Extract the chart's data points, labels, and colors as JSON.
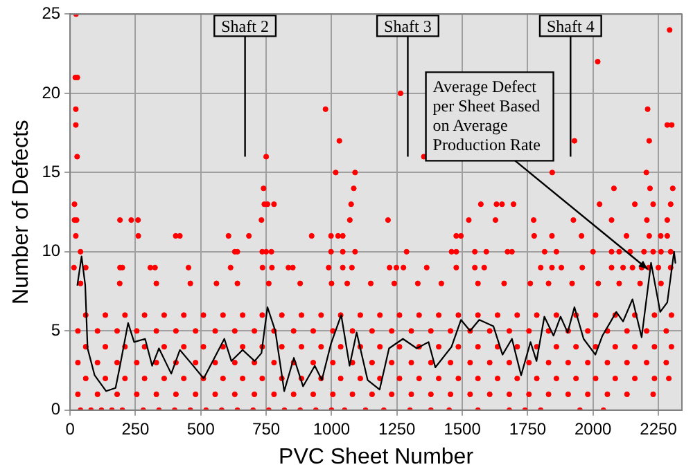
{
  "chart_data": {
    "type": "scatter",
    "xlabel": "PVC Sheet Number",
    "ylabel": "Number of Defects",
    "xlim": [
      0,
      2340
    ],
    "ylim": [
      0,
      25
    ],
    "xticks": [
      0,
      250,
      500,
      750,
      1000,
      1250,
      1500,
      1750,
      2000,
      2250
    ],
    "yticks": [
      0,
      5,
      10,
      15,
      20,
      25
    ],
    "grid": true,
    "legend": false,
    "marker": "circle",
    "annotations": [
      "Shaft 2",
      "Shaft 3",
      "Shaft 4",
      {
        "text": "Average Defect per Sheet Based on Average Production Rate",
        "x": 2209,
        "y": 8.9
      }
    ],
    "series": [
      {
        "color": "#ff0000",
        "x": [
          23,
          20,
          28,
          22,
          22,
          27,
          17,
          17,
          25,
          22,
          191,
          234,
          260,
          261,
          404,
          420,
          606,
          684,
          924,
          998,
          1025,
          1043,
          740,
          1085,
          743,
          755,
          780,
          1075,
          732,
          1070,
          1016,
          1090,
          750,
          1030,
          977,
          630,
          640,
          735,
          750,
          770,
          998,
          1043,
          1090,
          40,
          15,
          60,
          191,
          200,
          307,
          325,
          453,
          614,
          736,
          772,
          835,
          852,
          989,
          1043,
          1078,
          2293,
          2018,
          1264,
          2209,
          2284,
          2301,
          1929,
          2215,
          1353,
          1844,
          2204,
          2080,
          2218,
          2305,
          1571,
          1631,
          1652,
          1696,
          2025,
          2160,
          2230,
          2297,
          1216,
          1525,
          1627,
          1773,
          1925,
          2071,
          2206,
          2284,
          1477,
          1495,
          1775,
          1843,
          1956,
          2128,
          2215,
          2259,
          2284,
          1287,
          1459,
          1477,
          1548,
          1592,
          1673,
          1690,
          1815,
          1860,
          2000,
          2071,
          2100,
          2142,
          2195,
          2230,
          2260,
          2297,
          1222,
          1248,
          1275,
          1364,
          1477,
          1548,
          1584,
          1800,
          1843,
          1879,
          1959,
          2071,
          2115,
          2151,
          2186,
          2213,
          2250,
          2297,
          40,
          80,
          120,
          160,
          200,
          280,
          340,
          400,
          460,
          520,
          580,
          640,
          700,
          760,
          820,
          880,
          940,
          1000,
          1050,
          1130,
          1200,
          1300,
          1380,
          1450,
          1560,
          1680,
          1740,
          1800,
          1950,
          2040,
          30,
          105,
          180,
          255,
          330,
          405,
          480,
          555,
          630,
          705,
          780,
          855,
          930,
          1005,
          1080,
          1155,
          1230,
          1305,
          1380,
          1455,
          1530,
          1605,
          1680,
          1755,
          1830,
          1905,
          1980,
          2055,
          2130,
          2230,
          60,
          135,
          210,
          285,
          360,
          435,
          510,
          585,
          660,
          735,
          810,
          885,
          960,
          1035,
          1110,
          1185,
          1260,
          1335,
          1410,
          1485,
          1560,
          1635,
          1710,
          1785,
          1860,
          1935,
          2010,
          2085,
          2160,
          2235,
          2290,
          30,
          105,
          180,
          255,
          330,
          405,
          480,
          555,
          630,
          705,
          780,
          855,
          930,
          1005,
          1080,
          1155,
          1230,
          1305,
          1380,
          1455,
          1530,
          1605,
          1680,
          1755,
          1830,
          1905,
          1980,
          2055,
          2130,
          2205,
          2280,
          60,
          135,
          210,
          285,
          360,
          435,
          510,
          585,
          660,
          735,
          810,
          885,
          960,
          1035,
          1110,
          1185,
          1260,
          1335,
          1410,
          1485,
          1560,
          1635,
          1710,
          1785,
          1860,
          1935,
          2010,
          2085,
          2160,
          2235,
          2300,
          30,
          105,
          180,
          255,
          330,
          405,
          480,
          555,
          630,
          705,
          780,
          855,
          930,
          1005,
          1080,
          1155,
          1230,
          1305,
          1380,
          1455,
          1530,
          1605,
          1680,
          1755,
          1830,
          1905,
          1980,
          2055,
          2130,
          2205,
          2280,
          60,
          135,
          210,
          285,
          360,
          435,
          510,
          585,
          660,
          735,
          810,
          885,
          960,
          1035,
          1110,
          1185,
          1260,
          1335,
          1410,
          1485,
          1560,
          1635,
          1710,
          1785,
          1860,
          1935,
          2010,
          2085,
          2160,
          2235,
          2300,
          40,
          190,
          330,
          460,
          560,
          640,
          760,
          880,
          1000,
          1060,
          1150,
          1240,
          1330,
          1420,
          1560,
          1660,
          1760,
          1830,
          1920,
          2020,
          2100,
          2180,
          2260
        ],
        "values": [
          25,
          21,
          21,
          19,
          18,
          16,
          13,
          12,
          12,
          11,
          12,
          12,
          12,
          11,
          11,
          11,
          11,
          11,
          11,
          11,
          11,
          11,
          14,
          14,
          13,
          13,
          13,
          13,
          12,
          12,
          15,
          15,
          16,
          17,
          19,
          10,
          10,
          10,
          10,
          10,
          10,
          10,
          10,
          10,
          9,
          9,
          9,
          9,
          9,
          9,
          9,
          9,
          9,
          9,
          9,
          9,
          9,
          9,
          9,
          24,
          22,
          20,
          19,
          18,
          18,
          17,
          17,
          16,
          15,
          15,
          14,
          14,
          14,
          13,
          13,
          13,
          13,
          13,
          13,
          13,
          13,
          12,
          12,
          12,
          12,
          12,
          12,
          12,
          12,
          11,
          11,
          11,
          11,
          11,
          11,
          11,
          11,
          11,
          10,
          10,
          10,
          10,
          10,
          10,
          10,
          10,
          10,
          10,
          10,
          10,
          10,
          10,
          10,
          10,
          10,
          9,
          9,
          9,
          9,
          9,
          9,
          9,
          9,
          9,
          9,
          9,
          9,
          9,
          9,
          9,
          9,
          9,
          9,
          0,
          0,
          0,
          0,
          0,
          0,
          0,
          0,
          0,
          0,
          0,
          0,
          0,
          0,
          0,
          0,
          0,
          0,
          0,
          0,
          0,
          0,
          0,
          0,
          0,
          0,
          0,
          0,
          0,
          0,
          1,
          1,
          1,
          1,
          1,
          1,
          1,
          1,
          1,
          1,
          1,
          1,
          1,
          1,
          1,
          1,
          1,
          1,
          1,
          1,
          1,
          1,
          1,
          1,
          1,
          1,
          1,
          1,
          1,
          1,
          2,
          2,
          2,
          2,
          2,
          2,
          2,
          2,
          2,
          2,
          2,
          2,
          2,
          2,
          2,
          2,
          2,
          2,
          2,
          2,
          2,
          2,
          2,
          2,
          2,
          2,
          2,
          2,
          2,
          2,
          2,
          3,
          3,
          3,
          3,
          3,
          3,
          3,
          3,
          3,
          3,
          3,
          3,
          3,
          3,
          3,
          3,
          3,
          3,
          3,
          3,
          3,
          3,
          3,
          3,
          3,
          3,
          3,
          3,
          3,
          3,
          3,
          4,
          4,
          4,
          4,
          4,
          4,
          4,
          4,
          4,
          4,
          4,
          4,
          4,
          4,
          4,
          4,
          4,
          4,
          4,
          4,
          4,
          4,
          4,
          4,
          4,
          4,
          4,
          4,
          4,
          4,
          4,
          5,
          5,
          5,
          5,
          5,
          5,
          5,
          5,
          5,
          5,
          5,
          5,
          5,
          5,
          5,
          5,
          5,
          5,
          5,
          5,
          5,
          5,
          5,
          5,
          5,
          5,
          5,
          5,
          5,
          5,
          5,
          6,
          6,
          6,
          6,
          6,
          6,
          6,
          6,
          6,
          6,
          6,
          6,
          6,
          6,
          6,
          6,
          6,
          6,
          6,
          6,
          6,
          6,
          6,
          6,
          6,
          6,
          6,
          6,
          6,
          6,
          6,
          8,
          8,
          8,
          8,
          8,
          8,
          8,
          8,
          8,
          8,
          8,
          8,
          8,
          8,
          8,
          8,
          8,
          8,
          8,
          8,
          8,
          8,
          8
        ]
      },
      {
        "type": "line",
        "color": "#000000",
        "marker": "none",
        "x": [
          28,
          44,
          58,
          67,
          94,
          138,
          174,
          191,
          222,
          245,
          287,
          314,
          340,
          387,
          420,
          466,
          511,
          546,
          590,
          617,
          660,
          706,
          732,
          755,
          785,
          819,
          856,
          891,
          936,
          963,
          998,
          1037,
          1069,
          1096,
          1138,
          1184,
          1220,
          1273,
          1326,
          1371,
          1397,
          1459,
          1495,
          1530,
          1565,
          1619,
          1654,
          1690,
          1725,
          1761,
          1784,
          1814,
          1849,
          1876,
          1903,
          1929,
          1964,
          2009,
          2036,
          2089,
          2115,
          2151,
          2186,
          2222,
          2257,
          2284,
          2310,
          2315
        ],
        "values": [
          7.9,
          9.7,
          7.9,
          3.9,
          2.2,
          1.2,
          1.4,
          2.8,
          5.5,
          4.3,
          4.5,
          2.8,
          3.9,
          2.3,
          3.8,
          2.9,
          2.0,
          3.1,
          4.5,
          3.1,
          3.8,
          3.1,
          3.6,
          6.5,
          5.0,
          1.2,
          3.3,
          1.5,
          2.8,
          1.9,
          4.2,
          6.0,
          2.8,
          4.9,
          1.9,
          1.3,
          3.9,
          4.5,
          3.9,
          4.3,
          2.7,
          4.0,
          5.7,
          5.0,
          5.7,
          5.3,
          3.5,
          4.5,
          2.2,
          4.3,
          3.1,
          5.9,
          4.7,
          5.9,
          4.9,
          6.5,
          4.5,
          3.5,
          4.7,
          6.2,
          5.6,
          7.0,
          4.6,
          9.3,
          6.2,
          6.8,
          10.0,
          9.3
        ]
      }
    ]
  }
}
